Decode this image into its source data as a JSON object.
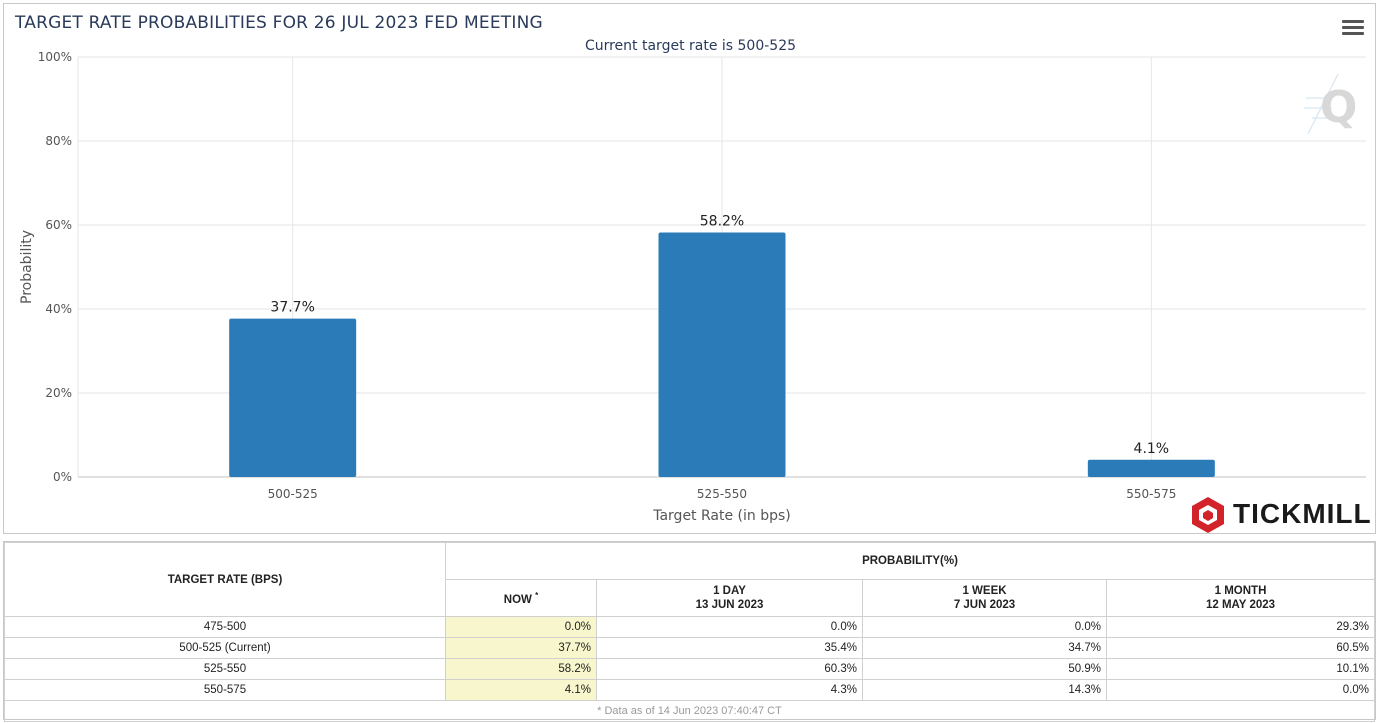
{
  "chart_data": {
    "type": "bar",
    "title": "TARGET RATE PROBABILITIES FOR 26 JUL 2023 FED MEETING",
    "subtitle": "Current target rate is 500-525",
    "xlabel": "Target Rate (in bps)",
    "ylabel": "Probability",
    "categories": [
      "500-525",
      "525-550",
      "550-575"
    ],
    "values": [
      37.7,
      58.2,
      4.1
    ],
    "data_labels": [
      "37.7%",
      "58.2%",
      "4.1%"
    ],
    "ylim": [
      0,
      100
    ],
    "yticks": [
      "0%",
      "20%",
      "40%",
      "60%",
      "80%",
      "100%"
    ],
    "grid": true,
    "bar_color": "#2b7bb9"
  },
  "watermark": {
    "brand": "TICKMILL",
    "logo_icon": "tickmill-hexagon-logo",
    "q_icon": "cme-q-watermark"
  },
  "menu": {
    "icon": "hamburger-menu-icon"
  },
  "table": {
    "header_target": "TARGET RATE (BPS)",
    "header_probability": "PROBABILITY(%)",
    "columns": [
      {
        "line1": "NOW",
        "marker": "*",
        "line2": ""
      },
      {
        "line1": "1 DAY",
        "line2": "13 JUN 2023"
      },
      {
        "line1": "1 WEEK",
        "line2": "7 JUN 2023"
      },
      {
        "line1": "1 MONTH",
        "line2": "12 MAY 2023"
      }
    ],
    "rows": [
      {
        "rate": "475-500",
        "values": [
          "0.0%",
          "0.0%",
          "0.0%",
          "29.3%"
        ]
      },
      {
        "rate": "500-525 (Current)",
        "values": [
          "37.7%",
          "35.4%",
          "34.7%",
          "60.5%"
        ]
      },
      {
        "rate": "525-550",
        "values": [
          "58.2%",
          "60.3%",
          "50.9%",
          "10.1%"
        ]
      },
      {
        "rate": "550-575",
        "values": [
          "4.1%",
          "4.3%",
          "14.3%",
          "0.0%"
        ]
      }
    ],
    "footnote": "* Data as of 14 Jun 2023 07:40:47 CT",
    "now_highlight_color": "#f7f6cc"
  }
}
